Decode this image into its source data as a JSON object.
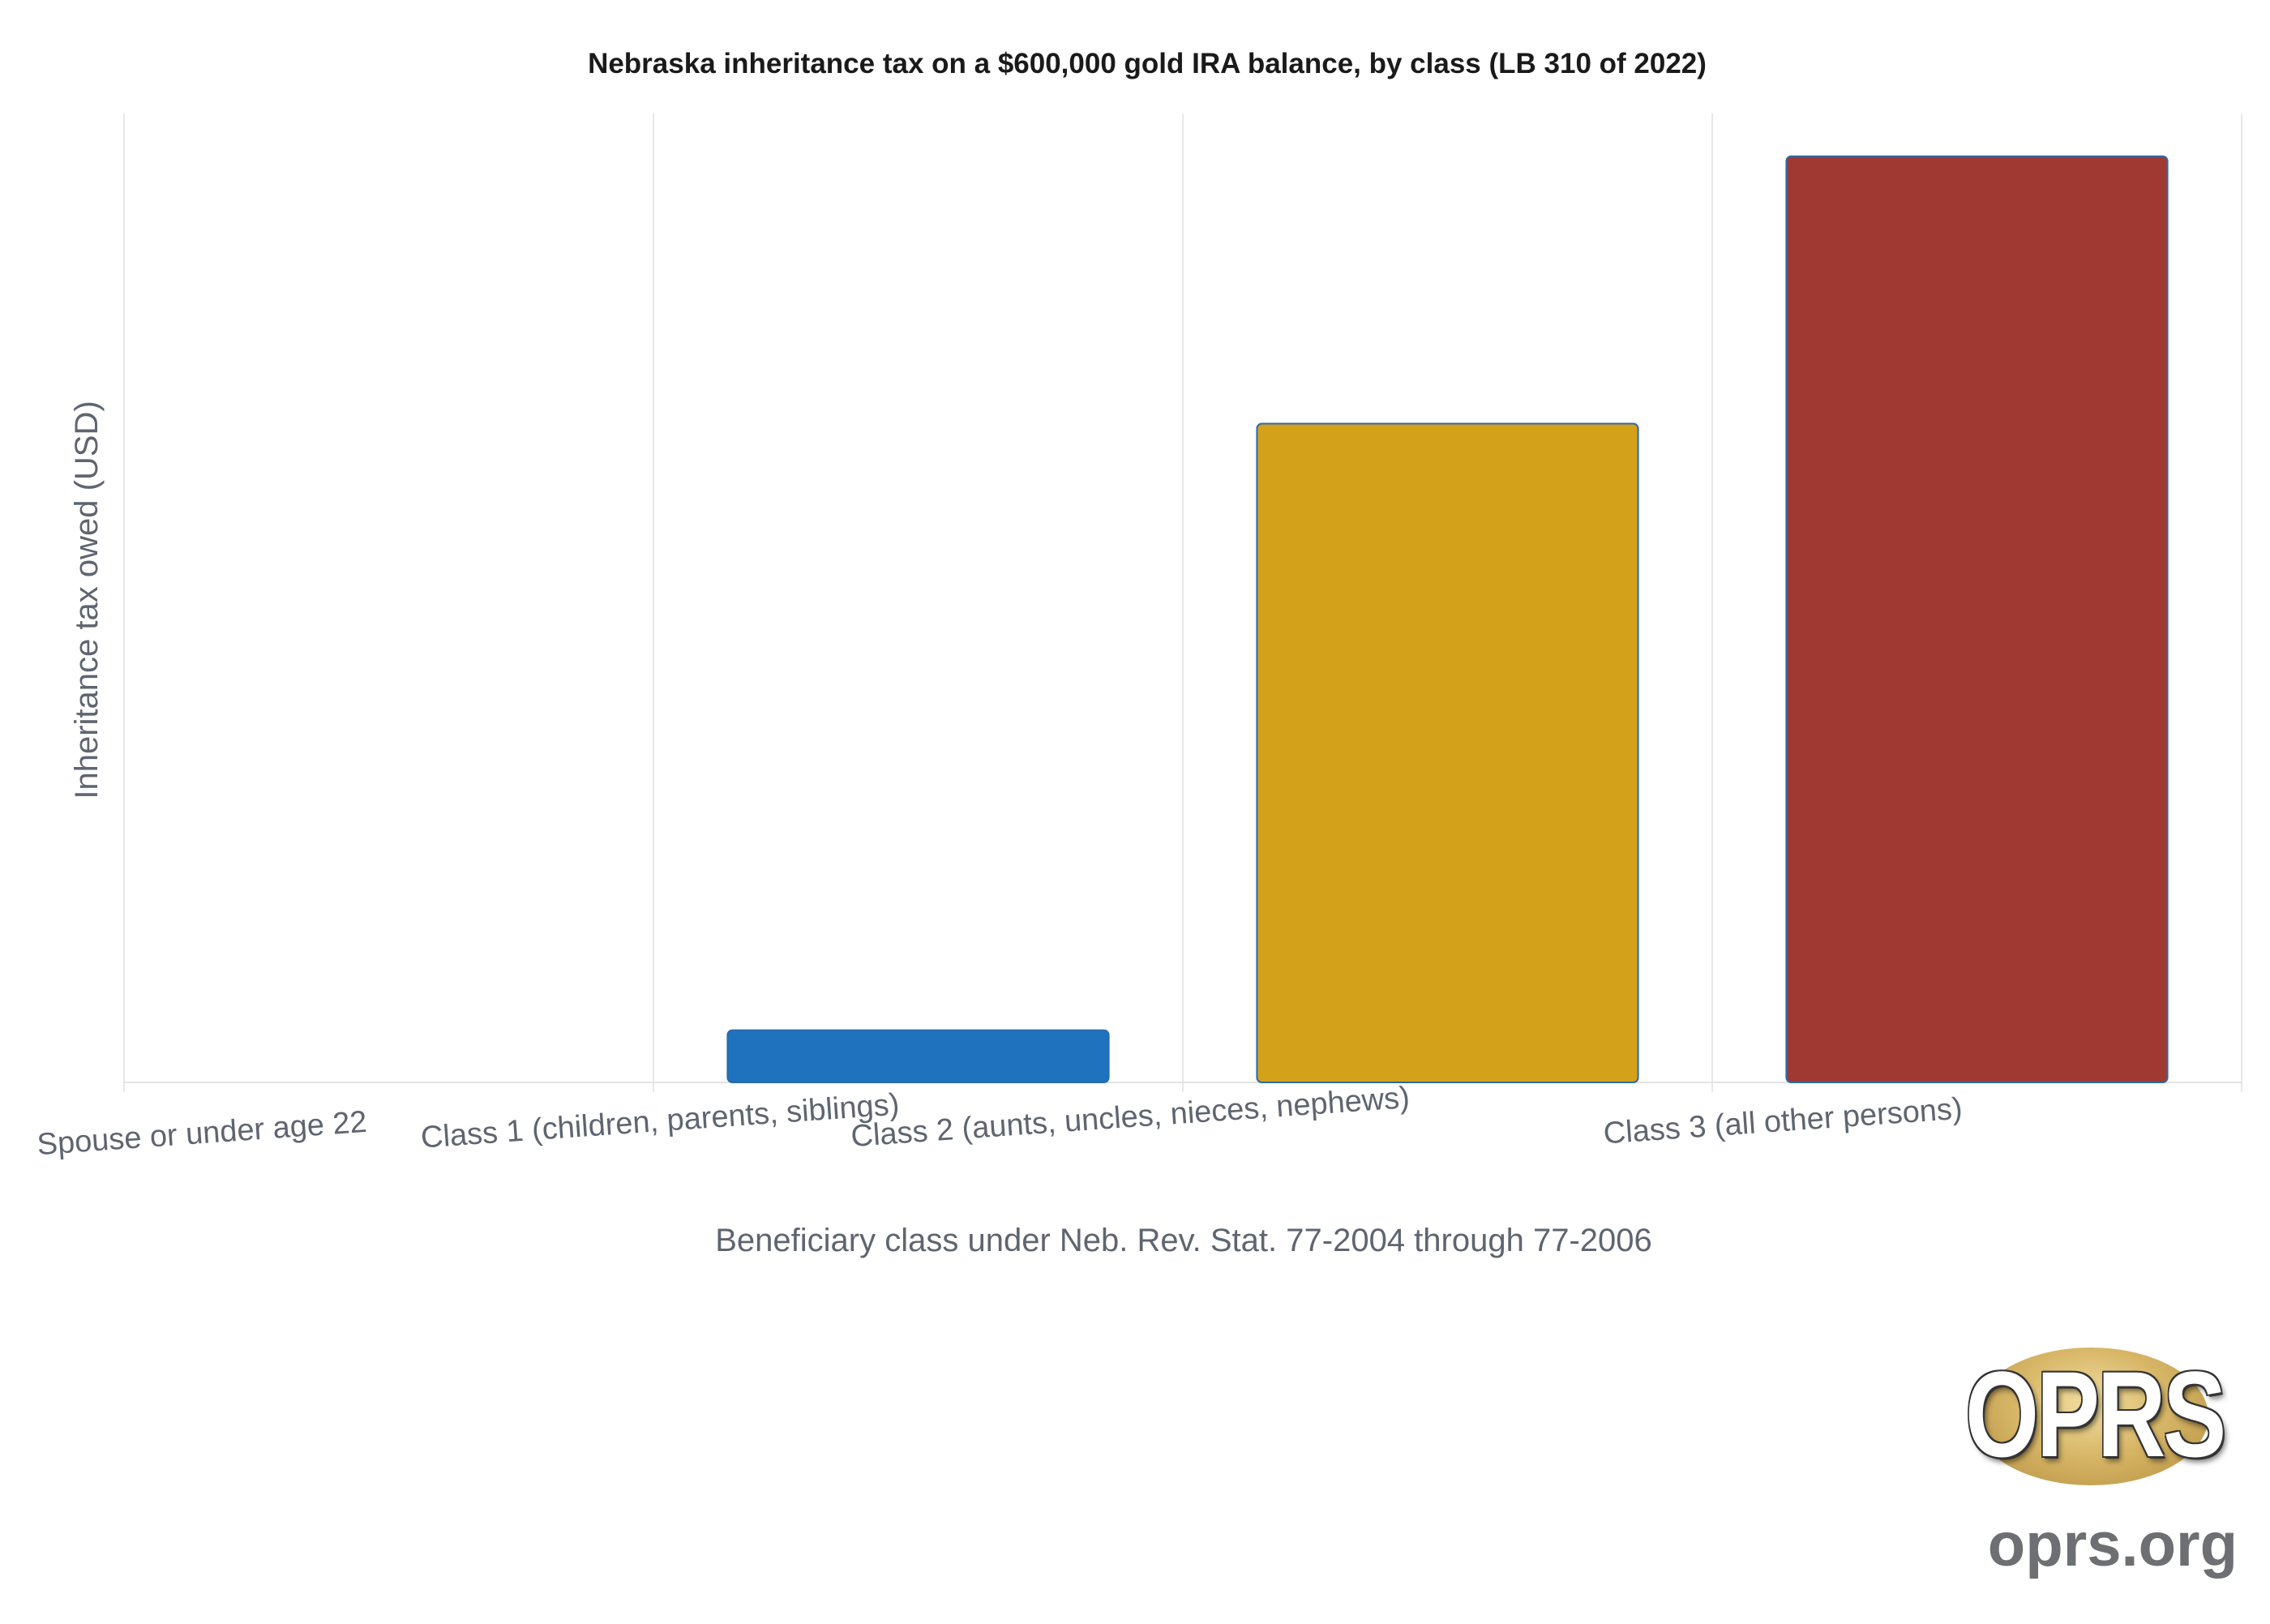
{
  "chart_data": {
    "type": "bar",
    "title": "Nebraska inheritance tax on a $600,000 gold IRA balance, by class (LB 310 of 2022)",
    "xlabel": "Beneficiary class under Neb. Rev. Stat. 77-2004 through 77-2006",
    "ylabel": "Inheritance tax owed (USD)",
    "categories": [
      "Spouse or under age 22",
      "Class 1 (children, parents, siblings)",
      "Class 2 (aunts, uncles, nieces, nephews)",
      "Class 3 (all other persons)"
    ],
    "values": [
      0,
      5500,
      69350,
      97500
    ],
    "colors": [
      "#1f72be",
      "#1f72be",
      "#d4a11a",
      "#a03932"
    ],
    "ylim": [
      0,
      102000
    ],
    "grid": "vertical",
    "legend": "none"
  },
  "logo": {
    "mark": "OPRS",
    "site": "oprs.org"
  }
}
